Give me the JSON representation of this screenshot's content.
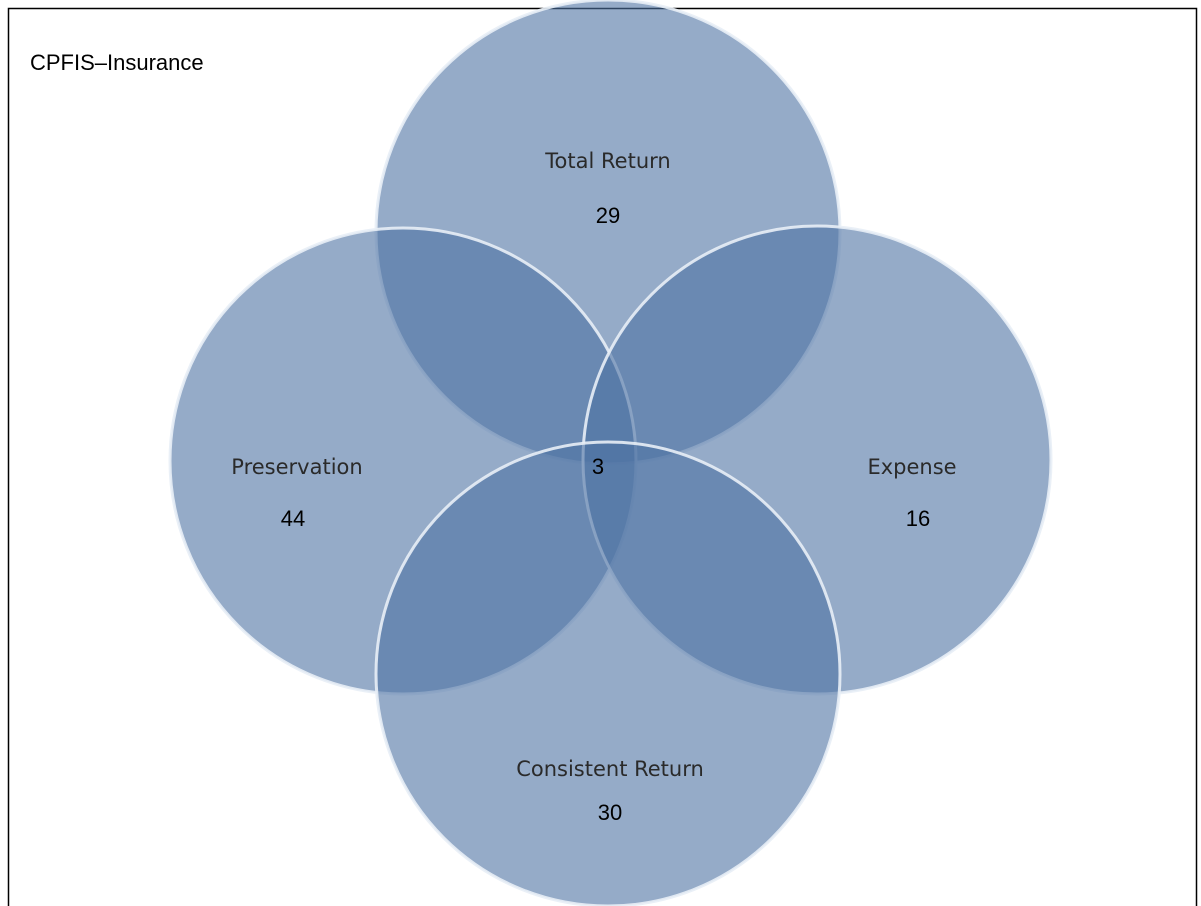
{
  "title": "CPFIS–Insurance",
  "sets": [
    {
      "label": "Total Return",
      "count": 29
    },
    {
      "label": "Preservation",
      "count": 44
    },
    {
      "label": "Expense",
      "count": 16
    },
    {
      "label": "Consistent Return",
      "count": 30
    }
  ],
  "intersection": {
    "count": 3
  }
}
